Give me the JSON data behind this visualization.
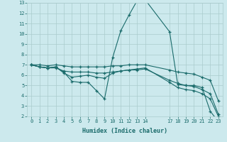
{
  "xlabel": "Humidex (Indice chaleur)",
  "background_color": "#cce9ed",
  "grid_color": "#aacccc",
  "line_color": "#1a6b6b",
  "xlim": [
    -0.5,
    23.5
  ],
  "ylim": [
    2,
    13
  ],
  "xticks": [
    0,
    1,
    2,
    3,
    4,
    5,
    6,
    7,
    8,
    9,
    10,
    11,
    12,
    13,
    14,
    17,
    18,
    19,
    20,
    21,
    22,
    23
  ],
  "yticks": [
    2,
    3,
    4,
    5,
    6,
    7,
    8,
    9,
    10,
    11,
    12,
    13
  ],
  "lines": [
    {
      "x": [
        0,
        1,
        2,
        3,
        4,
        5,
        6,
        7,
        8,
        9,
        10,
        11,
        12,
        13,
        14,
        17,
        18,
        19,
        20,
        21,
        22,
        23
      ],
      "y": [
        7.0,
        6.8,
        6.7,
        6.8,
        6.3,
        5.4,
        5.3,
        5.3,
        4.5,
        3.7,
        7.7,
        10.3,
        11.8,
        13.2,
        13.3,
        10.2,
        5.1,
        5.0,
        5.0,
        4.8,
        2.5,
        1.5
      ]
    },
    {
      "x": [
        0,
        1,
        2,
        3,
        4,
        5,
        6,
        7,
        8,
        9,
        10,
        11,
        12,
        13,
        14,
        17,
        18,
        19,
        20,
        21,
        22,
        23
      ],
      "y": [
        7.0,
        6.8,
        6.7,
        6.8,
        6.2,
        5.8,
        5.9,
        6.0,
        5.8,
        5.7,
        6.2,
        6.4,
        6.5,
        6.6,
        6.7,
        5.3,
        4.8,
        4.6,
        4.5,
        4.2,
        3.7,
        2.0
      ]
    },
    {
      "x": [
        0,
        1,
        2,
        3,
        4,
        5,
        6,
        7,
        8,
        9,
        10,
        11,
        12,
        13,
        14,
        17,
        18,
        19,
        20,
        21,
        22,
        23
      ],
      "y": [
        7.0,
        6.8,
        6.7,
        6.7,
        6.4,
        6.3,
        6.3,
        6.3,
        6.2,
        6.2,
        6.3,
        6.4,
        6.5,
        6.5,
        6.6,
        5.5,
        5.2,
        5.0,
        4.9,
        4.6,
        4.2,
        2.2
      ]
    },
    {
      "x": [
        0,
        1,
        2,
        3,
        4,
        5,
        6,
        7,
        8,
        9,
        10,
        11,
        12,
        13,
        14,
        17,
        18,
        19,
        20,
        21,
        22,
        23
      ],
      "y": [
        7.0,
        7.0,
        6.9,
        7.0,
        6.9,
        6.8,
        6.8,
        6.8,
        6.8,
        6.8,
        6.9,
        6.9,
        7.0,
        7.0,
        7.0,
        6.5,
        6.3,
        6.2,
        6.1,
        5.8,
        5.5,
        3.5
      ]
    }
  ]
}
